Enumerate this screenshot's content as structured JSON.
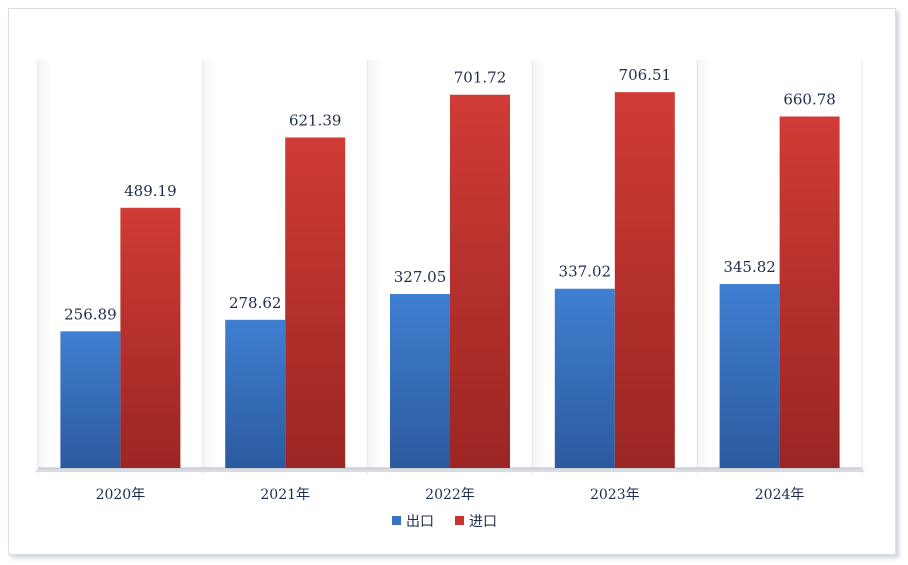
{
  "chart_data": {
    "type": "bar",
    "title": "",
    "xlabel": "",
    "ylabel": "",
    "categories": [
      "2020年",
      "2021年",
      "2022年",
      "2023年",
      "2024年"
    ],
    "series": [
      {
        "name": "出口",
        "color": "#3a73c4",
        "values": [
          256.89,
          278.62,
          327.05,
          337.02,
          345.82
        ]
      },
      {
        "name": "进口",
        "color": "#c83530",
        "values": [
          489.19,
          621.39,
          701.72,
          706.51,
          660.78
        ]
      }
    ],
    "ylim": [
      0,
      767
    ],
    "grid": false,
    "legend_position": "bottom"
  }
}
